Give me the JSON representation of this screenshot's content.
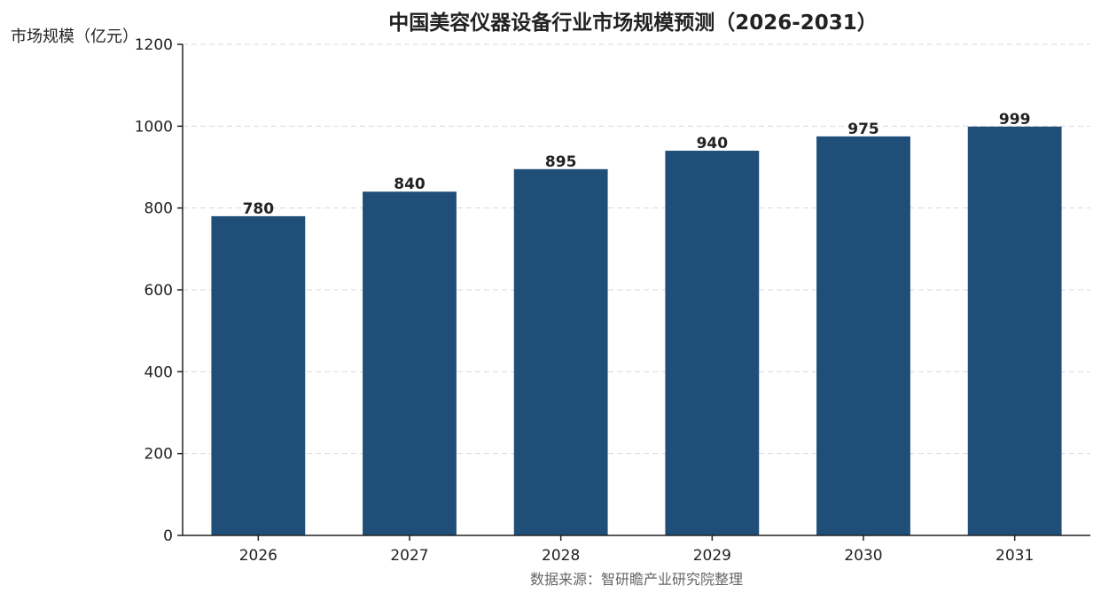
{
  "chart_data": {
    "type": "bar",
    "title": "中国美容仪器设备行业市场规模预测（2026-2031）",
    "ylabel": "市场规模（亿元）",
    "xlabel": "",
    "categories": [
      "2026",
      "2027",
      "2028",
      "2029",
      "2030",
      "2031"
    ],
    "values": [
      780,
      840,
      895,
      940,
      975,
      999
    ],
    "data_labels": [
      "780",
      "840",
      "895",
      "940",
      "975",
      "999"
    ],
    "ylim": [
      0,
      1200
    ],
    "yticks": [
      0,
      200,
      400,
      600,
      800,
      1000,
      1200
    ],
    "ytick_labels": [
      "0",
      "200",
      "400",
      "600",
      "800",
      "1000",
      "1200"
    ],
    "grid": "horizontal-dashed",
    "legend": "none",
    "bar_color": "#1f4e79",
    "source": "数据来源：智研瞻产业研究院整理"
  }
}
